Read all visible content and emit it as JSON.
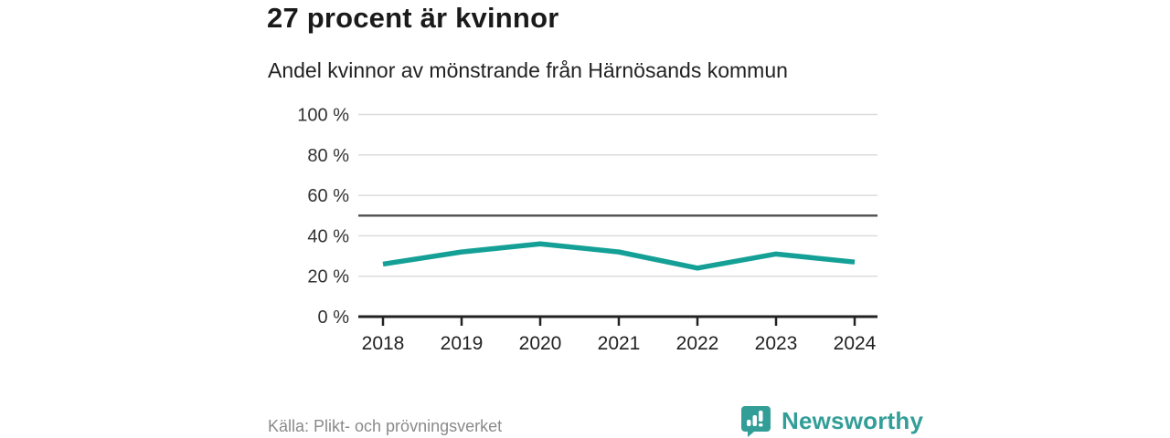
{
  "header": {
    "title": "27 procent är kvinnor",
    "subtitle": "Andel kvinnor av mönstrande från Härnösands kommun"
  },
  "footer": {
    "source": "Källa: Plikt- och prövningsverket"
  },
  "brand": {
    "name": "Newsworthy",
    "icon": "newsworthy-speech-bubble-bar-chart-icon",
    "color": "#339e98"
  },
  "colors": {
    "line": "#14a096",
    "grid": "#dcdcdc",
    "reference_line": "#555555",
    "axis": "#222222",
    "tick_label": "#333333",
    "title": "#1a1a1a",
    "source_text": "#8a8a8a"
  },
  "chart_data": {
    "type": "line",
    "title": "27 procent är kvinnor",
    "subtitle": "Andel kvinnor av mönstrande från Härnösands kommun",
    "source": "Källa: Plikt- och prövningsverket",
    "categories": [
      "2018",
      "2019",
      "2020",
      "2021",
      "2022",
      "2023",
      "2024"
    ],
    "series": [
      {
        "name": "Andel kvinnor av mönstrande",
        "values": [
          26,
          32,
          36,
          32,
          24,
          31,
          27
        ]
      }
    ],
    "xlabel": "",
    "ylabel": "",
    "ylim": [
      0,
      100
    ],
    "yticks": [
      0,
      20,
      40,
      60,
      80,
      100
    ],
    "ytick_suffix": " %",
    "reference_line": 50,
    "grid": true,
    "legend_position": "none"
  }
}
